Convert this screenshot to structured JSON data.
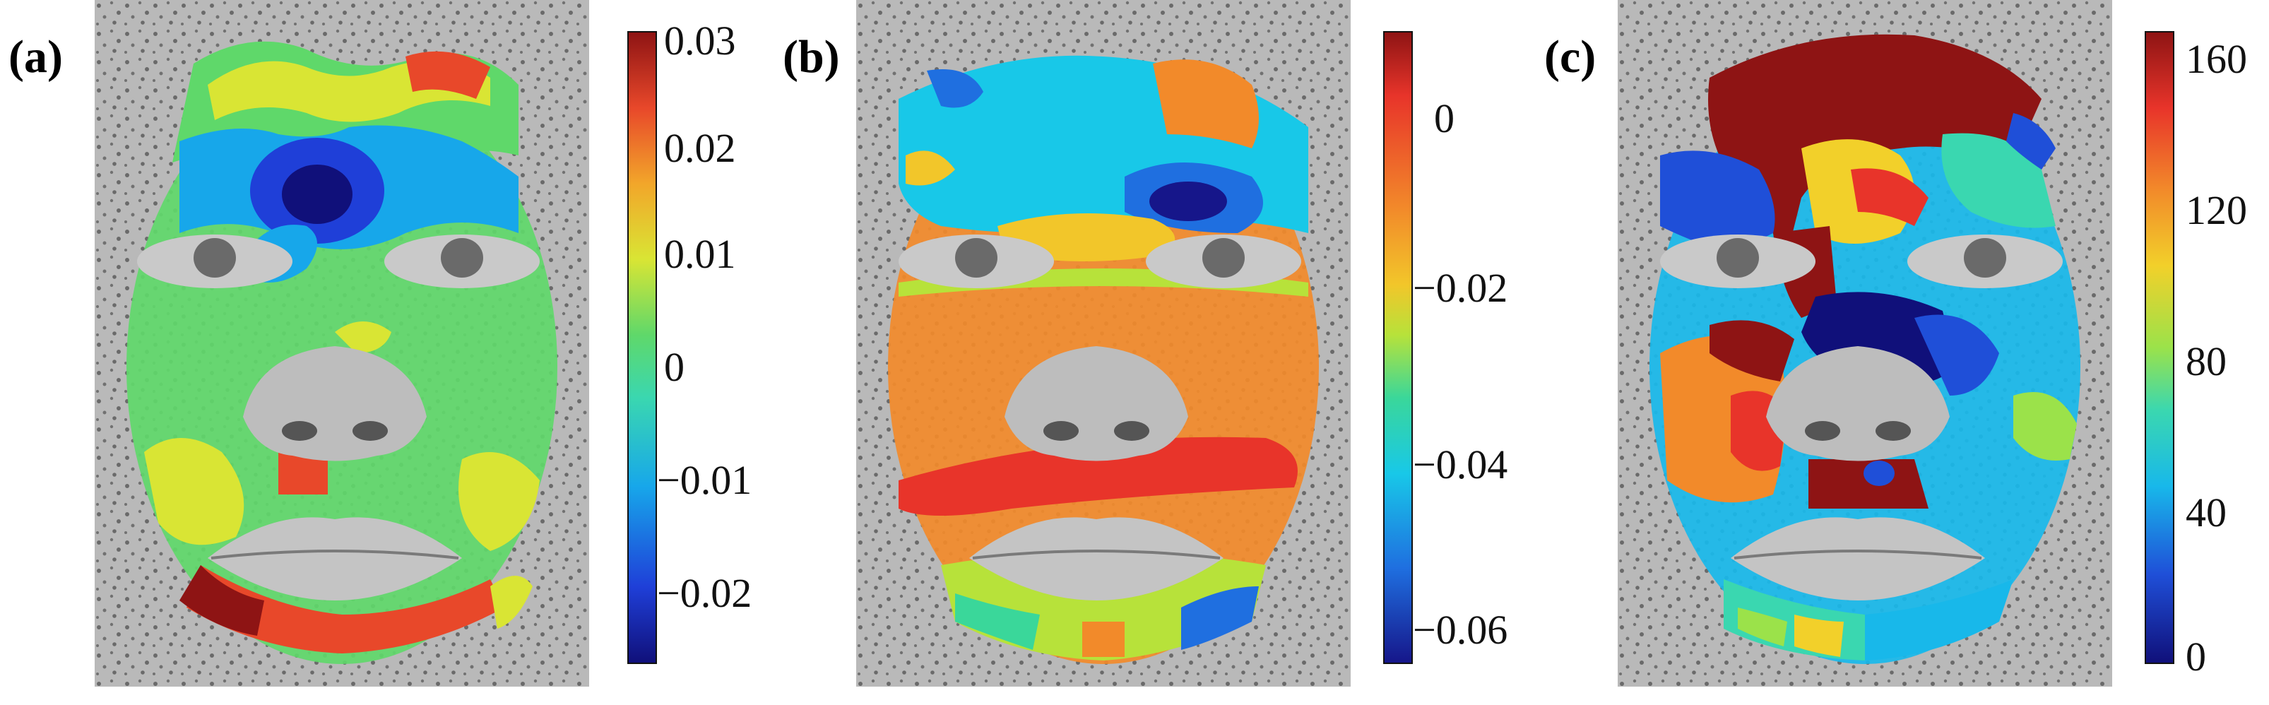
{
  "panels": [
    {
      "label": "(a)",
      "colorbar": {
        "colors": [
          "#10107a",
          "#1f3fd8",
          "#17a7ea",
          "#3ad7b0",
          "#5fd86a",
          "#d9e534",
          "#f2a62a",
          "#e8482a",
          "#8e1414"
        ],
        "ticks": [
          "0.03",
          "0.02",
          "0.01",
          "0",
          "−0.01",
          "−0.02"
        ]
      }
    },
    {
      "label": "(b)",
      "colorbar": {
        "colors": [
          "#8e1414",
          "#e8342a",
          "#f28a2a",
          "#f2c62a",
          "#b7e23a",
          "#3ad79a",
          "#18c8e8",
          "#1f6fe0",
          "#16168a"
        ],
        "ticks": [
          "0",
          "−0.02",
          "−0.04",
          "−0.06"
        ]
      }
    },
    {
      "label": "(c)",
      "colorbar": {
        "colors": [
          "#8e1414",
          "#e8342a",
          "#f28a2a",
          "#f2d02a",
          "#9be24a",
          "#3ad7b0",
          "#18b8ea",
          "#1f4fd8",
          "#10107a"
        ],
        "ticks": [
          "160",
          "120",
          "80",
          "40",
          "0"
        ]
      }
    }
  ]
}
